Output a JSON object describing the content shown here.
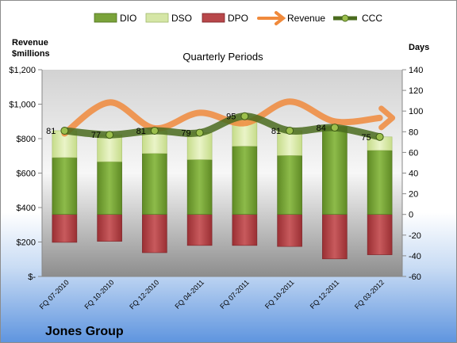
{
  "chart_data": {
    "type": "bar",
    "title": "Quarterly Periods",
    "company": "Jones Group",
    "left_axis_title": [
      "Revenue",
      "$millions"
    ],
    "right_axis_title": "Days",
    "categories": [
      "FQ 07-2010",
      "FQ 10-2010",
      "FQ 12-2010",
      "FQ 04-2011",
      "FQ 07-2011",
      "FQ 10-2011",
      "FQ 12-2011",
      "FQ 03-2012"
    ],
    "left_ylim": [
      0,
      1200
    ],
    "left_ticks": [
      "$-",
      "$200",
      "$400",
      "$600",
      "$800",
      "$1,000",
      "$1,200"
    ],
    "right_ylim": [
      -60,
      140
    ],
    "right_ticks": [
      "-60",
      "-40",
      "-20",
      "0",
      "20",
      "40",
      "60",
      "80",
      "100",
      "120",
      "140"
    ],
    "legend": [
      "DIO",
      "DSO",
      "DPO",
      "Revenue",
      "CCC"
    ],
    "series": [
      {
        "name": "DIO",
        "axis": "right",
        "color": "#7aa33a",
        "values": [
          55,
          51,
          59,
          53,
          66,
          57,
          85,
          62
        ]
      },
      {
        "name": "DSO",
        "axis": "right",
        "color": "#d5e6a6",
        "values": [
          26,
          26,
          22,
          26,
          29,
          24,
          0,
          13
        ]
      },
      {
        "name": "DPO",
        "axis": "right",
        "color": "#b8474a",
        "values": [
          -27,
          -26,
          -37,
          -30,
          -30,
          -31,
          -43,
          -39
        ]
      },
      {
        "name": "Revenue",
        "axis": "left",
        "color": "#f08a3c",
        "values": [
          830,
          1010,
          860,
          950,
          890,
          1015,
          900,
          920
        ]
      },
      {
        "name": "CCC",
        "axis": "right",
        "color": "#4a6b1e",
        "values": [
          81,
          77,
          81,
          79,
          95,
          81,
          84,
          75
        ]
      }
    ],
    "ccc_labels": [
      "81",
      "77",
      "81",
      "79",
      "95",
      "81",
      "84",
      "75"
    ],
    "grid": false,
    "legend_position": "top"
  }
}
